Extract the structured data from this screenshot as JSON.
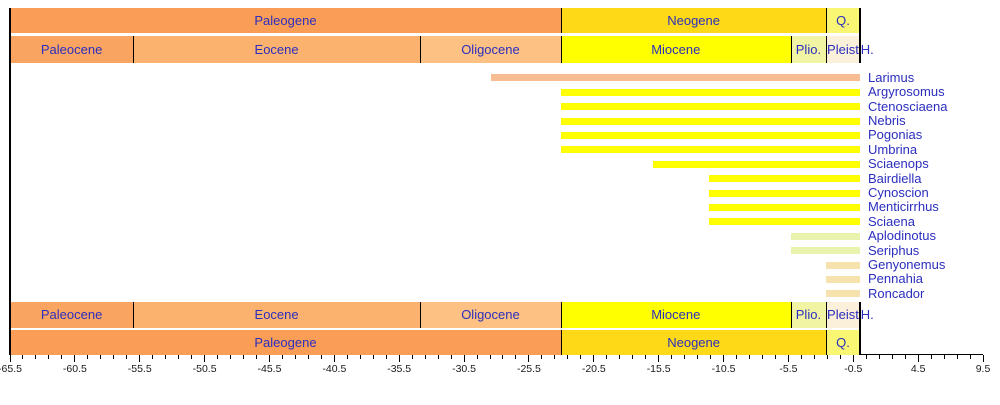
{
  "page": {
    "background": "#FFFFFF"
  },
  "text_colors": {
    "label_navy": "#2B2EBE",
    "tick_black": "#1A1A1A"
  },
  "chart_data": {
    "type": "bar",
    "variant": "horizontal-fossil-range-chart",
    "title": "",
    "xlabel": "",
    "ylabel": "",
    "unit": "Ma (millions of years before present, negative = past)",
    "axis": {
      "min": -65.5,
      "max": 9.5,
      "minor_step": 1,
      "major_step": 5,
      "major_tick_labels": [
        "-65.5",
        "-60.5",
        "-55.5",
        "-50.5",
        "-45.5",
        "-40.5",
        "-35.5",
        "-30.5",
        "-25.5",
        "-20.5",
        "-15.5",
        "-10.5",
        "-5.5",
        "-0.5",
        "4.5",
        "9.5"
      ]
    },
    "periods": [
      {
        "label": "Paleogene",
        "start": -66,
        "end": -23.03,
        "color": "#FA9D57"
      },
      {
        "label": "Neogene",
        "start": -23.03,
        "end": -2.58,
        "color": "#FDD917"
      },
      {
        "label": "Q.",
        "start": -2.58,
        "end": 0,
        "color": "#F8F673"
      }
    ],
    "epochs": [
      {
        "label": "Paleocene",
        "start": -66,
        "end": -56,
        "color": "#FAA461"
      },
      {
        "label": "Eocene",
        "start": -56,
        "end": -33.9,
        "color": "#FBB26F"
      },
      {
        "label": "Oligocene",
        "start": -33.9,
        "end": -23.03,
        "color": "#FCC183"
      },
      {
        "label": "Miocene",
        "start": -23.03,
        "end": -5.333,
        "color": "#FFFF00"
      },
      {
        "label": "Plio.",
        "start": -5.333,
        "end": -2.58,
        "color": "#F1F4A3"
      },
      {
        "label": "Pleist",
        "start": -2.58,
        "end": -0.012,
        "color": "#FBF0D9"
      },
      {
        "label": "H.",
        "start": -0.012,
        "end": 0,
        "color": "#FEF2E0",
        "label_outside": true
      }
    ],
    "taxa": [
      {
        "name": "Larimus",
        "start": -28.4,
        "end": 0,
        "color": "#F7BC92"
      },
      {
        "name": "Argyrosomus",
        "start": -23.03,
        "end": 0,
        "color": "#FFFF00"
      },
      {
        "name": "Ctenosciaena",
        "start": -23.03,
        "end": 0,
        "color": "#FFFF00"
      },
      {
        "name": "Nebris",
        "start": -23.03,
        "end": 0,
        "color": "#FFFF00"
      },
      {
        "name": "Pogonias",
        "start": -23.03,
        "end": 0,
        "color": "#FFFF00"
      },
      {
        "name": "Umbrina",
        "start": -23.03,
        "end": 0,
        "color": "#FFFF00"
      },
      {
        "name": "Sciaenops",
        "start": -15.97,
        "end": 0,
        "color": "#FFFF00"
      },
      {
        "name": "Bairdiella",
        "start": -11.63,
        "end": 0,
        "color": "#FFFF00"
      },
      {
        "name": "Cynoscion",
        "start": -11.63,
        "end": 0,
        "color": "#FFFF00"
      },
      {
        "name": "Menticirrhus",
        "start": -11.63,
        "end": 0,
        "color": "#FFFF00"
      },
      {
        "name": "Sciaena",
        "start": -11.63,
        "end": 0,
        "color": "#FFFF00"
      },
      {
        "name": "Aplodinotus",
        "start": -5.33,
        "end": 0,
        "color": "#EAF3AE"
      },
      {
        "name": "Seriphus",
        "start": -5.33,
        "end": 0,
        "color": "#EAF3AE"
      },
      {
        "name": "Genyonemus",
        "start": -2.58,
        "end": 0,
        "color": "#F5E2AC"
      },
      {
        "name": "Pennahia",
        "start": -2.58,
        "end": 0,
        "color": "#F5E2AC"
      },
      {
        "name": "Roncador",
        "start": -2.58,
        "end": 0,
        "color": "#F5E2AC"
      }
    ],
    "legend": null,
    "grid": false
  }
}
